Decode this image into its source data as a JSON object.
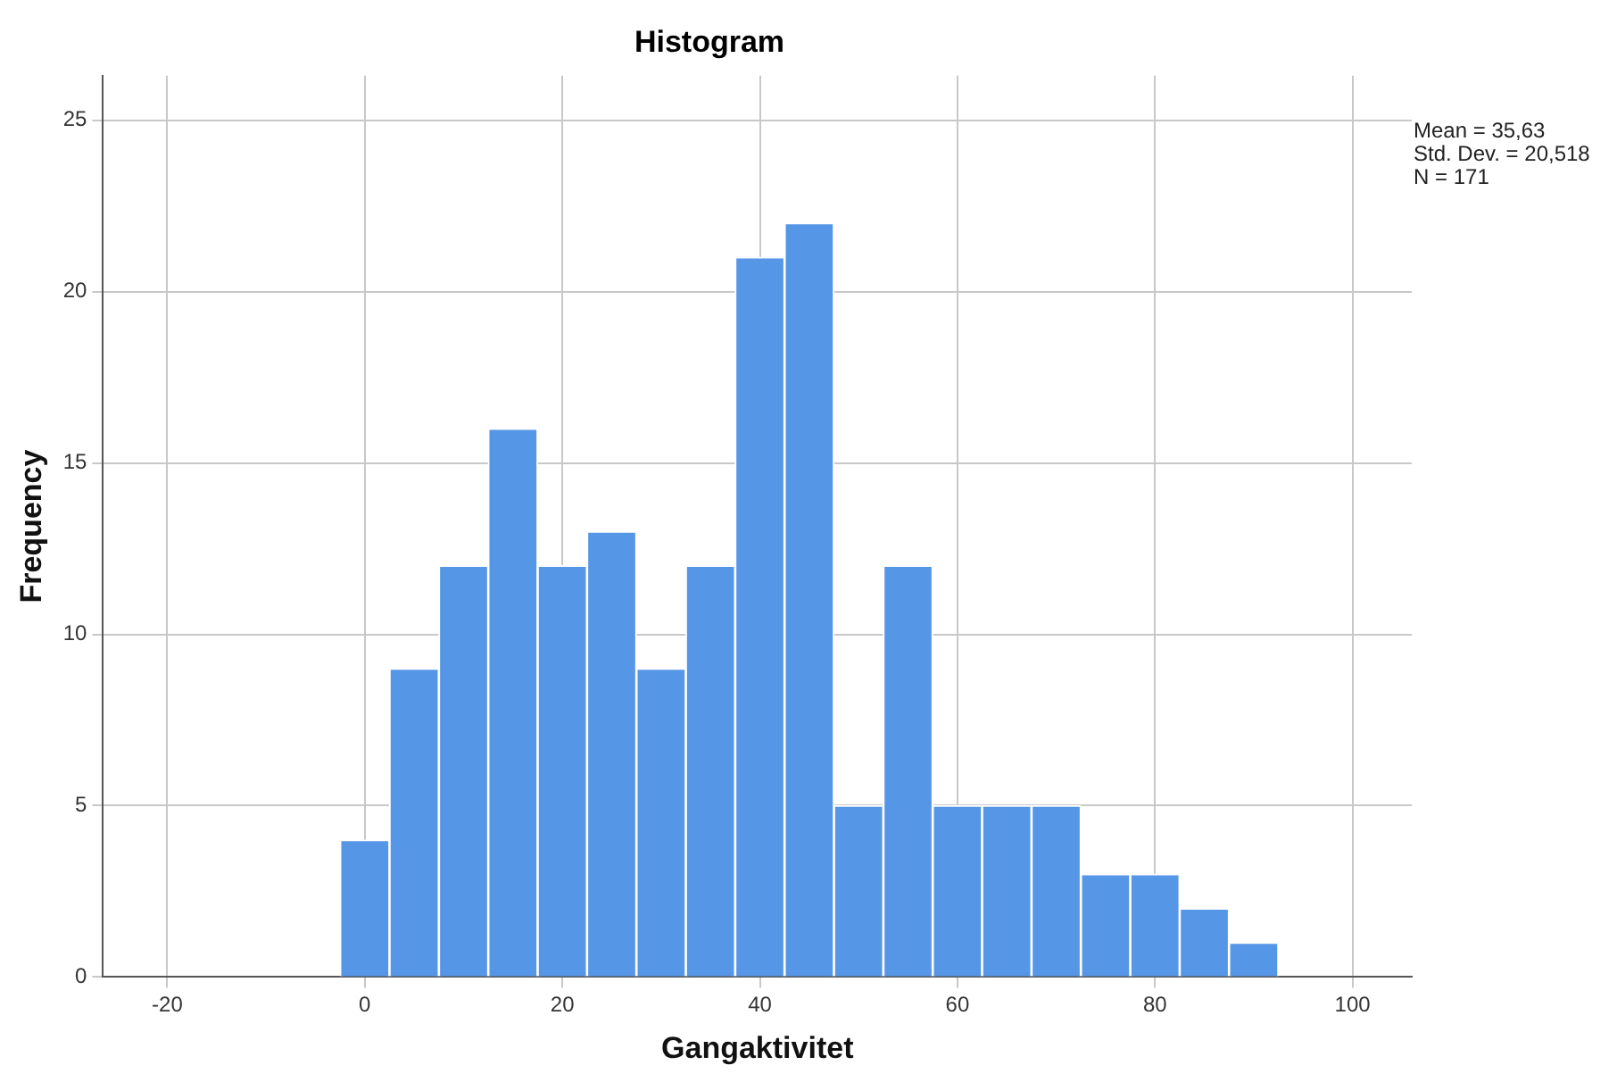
{
  "chart_data": {
    "type": "histogram",
    "title": "Histogram",
    "xlabel": "Gangaktivitet",
    "ylabel": "Frequency",
    "bins": [
      -2.5,
      2.5,
      7.5,
      12.5,
      17.5,
      22.5,
      27.5,
      32.5,
      37.5,
      42.5,
      47.5,
      52.5,
      57.5,
      62.5,
      67.5,
      72.5,
      77.5,
      82.5,
      87.5,
      92.5
    ],
    "values": [
      4,
      9,
      12,
      16,
      12,
      13,
      9,
      12,
      21,
      22,
      5,
      12,
      5,
      5,
      5,
      3,
      3,
      2,
      1
    ],
    "color": "#5596e6",
    "xlim": [
      -26.5,
      106
    ],
    "xticks": [
      -20,
      0,
      20,
      40,
      60,
      80,
      100
    ],
    "ylim": [
      0,
      26.3
    ],
    "yticks": [
      0,
      5,
      10,
      15,
      20,
      25
    ],
    "grid": true,
    "legend": false,
    "annotations": [
      "Mean = 35,63",
      "Std. Dev. = 20,518",
      "N = 171"
    ]
  }
}
